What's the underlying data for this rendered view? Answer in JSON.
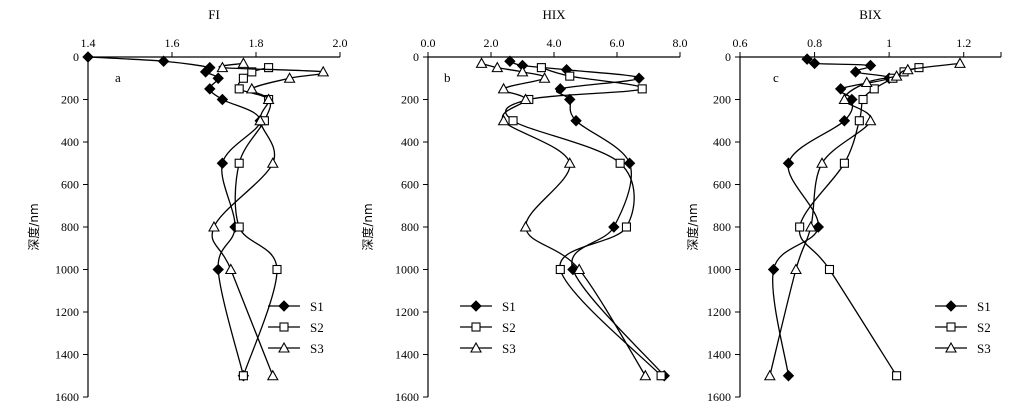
{
  "chart_data": [
    {
      "type": "line",
      "title": "FI",
      "panel": "a",
      "xlabel": "FI",
      "ylabel": "深度/nm",
      "xlim": [
        1.4,
        2.0
      ],
      "ylim": [
        0,
        1600
      ],
      "x_ticks": [
        "1.4",
        "1.6",
        "1.8",
        "2.0"
      ],
      "y_ticks": [
        "0",
        "200",
        "400",
        "600",
        "800",
        "1000",
        "1200",
        "1400",
        "1600"
      ],
      "legend_position": "bottom-right",
      "series": [
        {
          "name": "S1",
          "marker": "diamond",
          "points": [
            [
              1.4,
              0
            ],
            [
              1.58,
              20
            ],
            [
              1.69,
              50
            ],
            [
              1.68,
              70
            ],
            [
              1.71,
              100
            ],
            [
              1.69,
              150
            ],
            [
              1.72,
              200
            ],
            [
              1.81,
              300
            ],
            [
              1.72,
              500
            ],
            [
              1.75,
              800
            ],
            [
              1.71,
              1000
            ],
            [
              1.77,
              1500
            ]
          ]
        },
        {
          "name": "S2",
          "marker": "square",
          "points": [
            [
              1.83,
              50
            ],
            [
              1.79,
              70
            ],
            [
              1.77,
              100
            ],
            [
              1.76,
              150
            ],
            [
              1.83,
              200
            ],
            [
              1.82,
              300
            ],
            [
              1.76,
              500
            ],
            [
              1.76,
              800
            ],
            [
              1.85,
              1000
            ],
            [
              1.77,
              1500
            ]
          ]
        },
        {
          "name": "S3",
          "marker": "triangle",
          "points": [
            [
              1.77,
              30
            ],
            [
              1.72,
              50
            ],
            [
              1.96,
              70
            ],
            [
              1.88,
              100
            ],
            [
              1.79,
              150
            ],
            [
              1.83,
              200
            ],
            [
              1.81,
              300
            ],
            [
              1.84,
              500
            ],
            [
              1.7,
              800
            ],
            [
              1.74,
              1000
            ],
            [
              1.84,
              1500
            ]
          ]
        }
      ]
    },
    {
      "type": "line",
      "title": "HIX",
      "panel": "b",
      "xlabel": "HIX",
      "ylabel": "深度/nm",
      "xlim": [
        0,
        8
      ],
      "ylim": [
        0,
        1600
      ],
      "x_ticks": [
        "0.0",
        "2.0",
        "4.0",
        "6.0",
        "8.0"
      ],
      "y_ticks": [
        "0",
        "200",
        "400",
        "600",
        "800",
        "1000",
        "1200",
        "1400",
        "1600"
      ],
      "legend_position": "bottom-left",
      "series": [
        {
          "name": "S1",
          "marker": "diamond",
          "points": [
            [
              2.6,
              20
            ],
            [
              3.0,
              40
            ],
            [
              4.4,
              60
            ],
            [
              6.7,
              100
            ],
            [
              4.2,
              150
            ],
            [
              4.5,
              200
            ],
            [
              4.7,
              300
            ],
            [
              6.4,
              500
            ],
            [
              5.9,
              800
            ],
            [
              4.6,
              1000
            ],
            [
              7.5,
              1500
            ]
          ]
        },
        {
          "name": "S2",
          "marker": "square",
          "points": [
            [
              3.6,
              50
            ],
            [
              4.5,
              90
            ],
            [
              6.8,
              150
            ],
            [
              3.2,
              200
            ],
            [
              2.7,
              300
            ],
            [
              6.1,
              500
            ],
            [
              6.3,
              800
            ],
            [
              4.2,
              1000
            ],
            [
              7.4,
              1500
            ]
          ]
        },
        {
          "name": "S3",
          "marker": "triangle",
          "points": [
            [
              1.7,
              30
            ],
            [
              2.2,
              50
            ],
            [
              3.0,
              70
            ],
            [
              3.7,
              100
            ],
            [
              2.4,
              150
            ],
            [
              3.1,
              200
            ],
            [
              2.4,
              300
            ],
            [
              4.5,
              500
            ],
            [
              3.1,
              800
            ],
            [
              4.8,
              1000
            ],
            [
              6.9,
              1500
            ]
          ]
        }
      ]
    },
    {
      "type": "line",
      "title": "BIX",
      "panel": "c",
      "xlabel": "BIX",
      "ylabel": "深度/nm",
      "xlim": [
        0.6,
        1.3
      ],
      "ylim": [
        0,
        1600
      ],
      "x_ticks": [
        "0.6",
        "0.8",
        "1",
        "1.2"
      ],
      "y_ticks": [
        "0",
        "200",
        "400",
        "600",
        "800",
        "1000",
        "1200",
        "1400",
        "1600"
      ],
      "legend_position": "bottom-right",
      "series": [
        {
          "name": "S1",
          "marker": "diamond",
          "points": [
            [
              0.78,
              10
            ],
            [
              0.8,
              30
            ],
            [
              0.95,
              40
            ],
            [
              0.91,
              70
            ],
            [
              1.0,
              100
            ],
            [
              0.87,
              150
            ],
            [
              0.9,
              200
            ],
            [
              0.88,
              300
            ],
            [
              0.73,
              500
            ],
            [
              0.81,
              800
            ],
            [
              0.69,
              1000
            ],
            [
              0.73,
              1500
            ]
          ]
        },
        {
          "name": "S2",
          "marker": "square",
          "points": [
            [
              1.08,
              50
            ],
            [
              1.04,
              70
            ],
            [
              1.01,
              100
            ],
            [
              0.96,
              150
            ],
            [
              0.93,
              200
            ],
            [
              0.92,
              300
            ],
            [
              0.88,
              500
            ],
            [
              0.76,
              800
            ],
            [
              0.84,
              1000
            ],
            [
              1.02,
              1500
            ]
          ]
        },
        {
          "name": "S3",
          "marker": "triangle",
          "points": [
            [
              1.19,
              30
            ],
            [
              1.05,
              60
            ],
            [
              1.02,
              90
            ],
            [
              0.94,
              120
            ],
            [
              0.88,
              200
            ],
            [
              0.95,
              300
            ],
            [
              0.82,
              500
            ],
            [
              0.79,
              800
            ],
            [
              0.75,
              1000
            ],
            [
              0.68,
              1500
            ]
          ]
        }
      ]
    }
  ]
}
